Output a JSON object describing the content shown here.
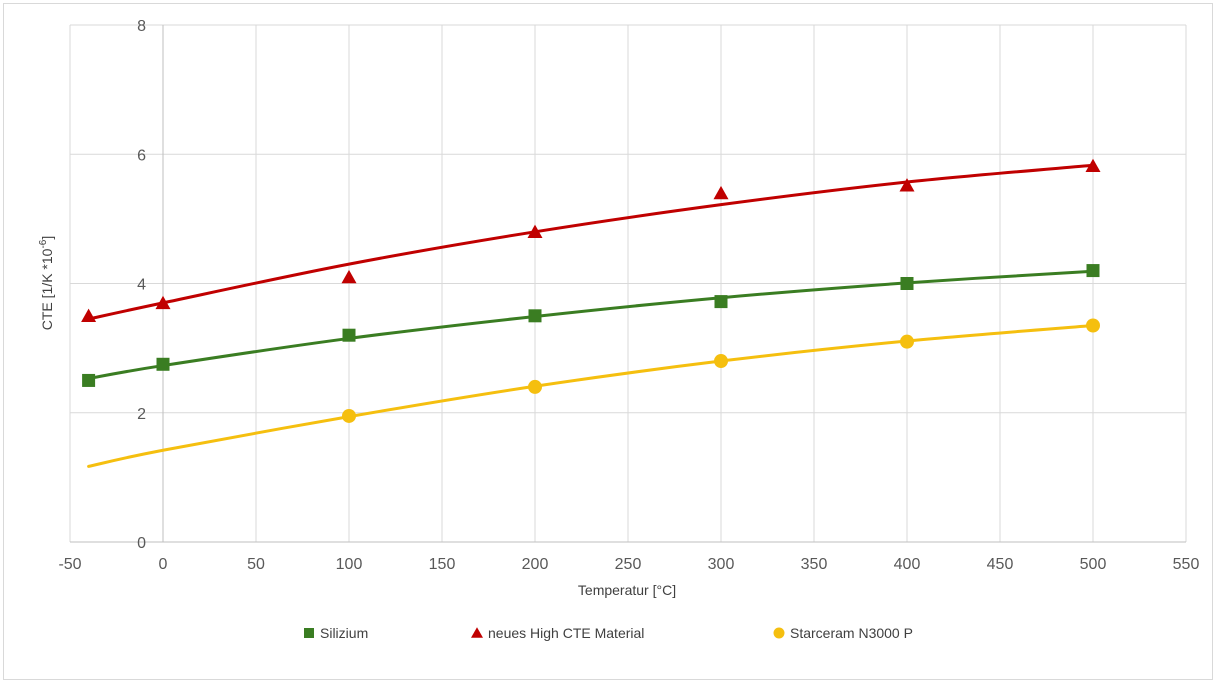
{
  "chart_data": {
    "type": "scatter",
    "title": "",
    "xlabel": "Temperatur [°C]",
    "ylabel_main": "CTE [1/K *10",
    "ylabel_exp": "-6",
    "ylabel_close": "]",
    "xlim": [
      -50,
      550
    ],
    "ylim": [
      0,
      8
    ],
    "xticks": [
      -50,
      0,
      50,
      100,
      150,
      200,
      250,
      300,
      350,
      400,
      450,
      500,
      550
    ],
    "yticks": [
      0,
      2,
      4,
      6,
      8
    ],
    "grid": true,
    "legend_position": "bottom",
    "series": [
      {
        "name": "Silizium",
        "marker": "square",
        "color": "#3a7d22",
        "x": [
          -40,
          0,
          100,
          200,
          300,
          400,
          500
        ],
        "y": [
          2.5,
          2.75,
          3.2,
          3.5,
          3.72,
          4.0,
          4.2
        ],
        "trend_x": [
          -40,
          0,
          100,
          200,
          300,
          400,
          500
        ],
        "trend_y": [
          2.53,
          2.73,
          3.15,
          3.49,
          3.78,
          4.01,
          4.19
        ]
      },
      {
        "name": "neues High CTE Material",
        "marker": "triangle",
        "color": "#c00000",
        "x": [
          -40,
          0,
          100,
          200,
          300,
          400,
          500
        ],
        "y": [
          3.5,
          3.7,
          4.1,
          4.8,
          5.4,
          5.52,
          5.82
        ],
        "trend_x": [
          -40,
          0,
          100,
          200,
          300,
          400,
          500
        ],
        "trend_y": [
          3.45,
          3.7,
          4.3,
          4.8,
          5.22,
          5.57,
          5.83
        ]
      },
      {
        "name": "Starceram N3000 P",
        "marker": "circle",
        "color": "#f5bf0f",
        "x": [
          100,
          200,
          300,
          400,
          500
        ],
        "y": [
          1.95,
          2.4,
          2.8,
          3.1,
          3.35
        ],
        "trend_x": [
          -40,
          0,
          100,
          200,
          300,
          400,
          500
        ],
        "trend_y": [
          1.17,
          1.42,
          1.94,
          2.41,
          2.8,
          3.11,
          3.35
        ]
      }
    ]
  }
}
